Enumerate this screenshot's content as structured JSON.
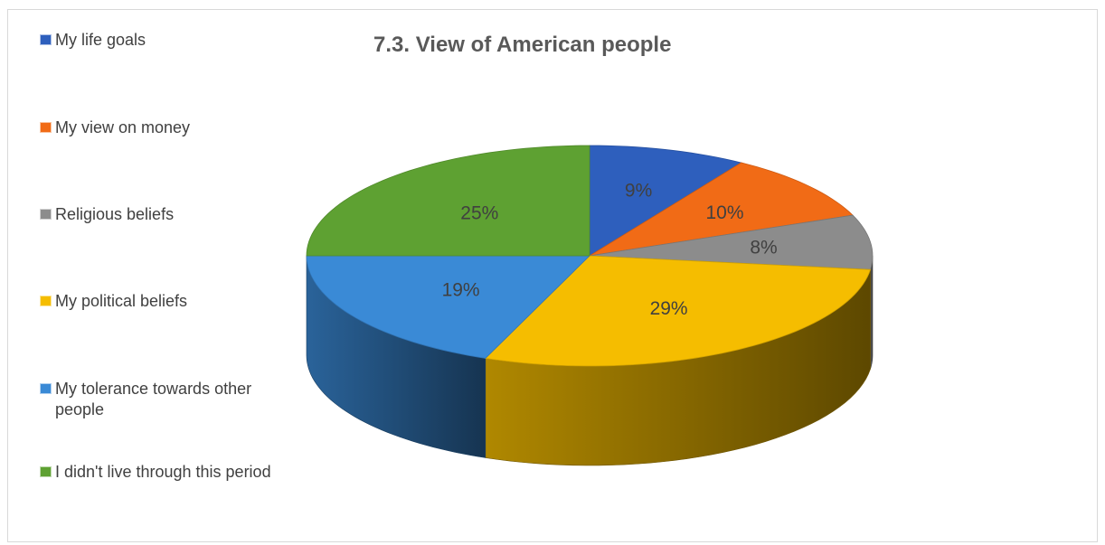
{
  "chart_data": {
    "type": "pie",
    "title": "7.3. View of American people",
    "legend_position": "left",
    "three_d": true,
    "slices": [
      {
        "label": "My life goals",
        "value": 9,
        "display": "9%",
        "color": "#2e5fbd"
      },
      {
        "label": "My view on money",
        "value": 10,
        "display": "10%",
        "color": "#f16b16"
      },
      {
        "label": "Religious beliefs",
        "value": 8,
        "display": "8%",
        "color": "#8c8c8c"
      },
      {
        "label": "My political beliefs",
        "value": 29,
        "display": "29%",
        "color": "#f5bd00"
      },
      {
        "label": "My tolerance towards other people",
        "value": 19,
        "display": "19%",
        "color": "#3a8ad6"
      },
      {
        "label": "I didn't live through this period",
        "value": 25,
        "display": "25%",
        "color": "#5ea132"
      }
    ]
  }
}
